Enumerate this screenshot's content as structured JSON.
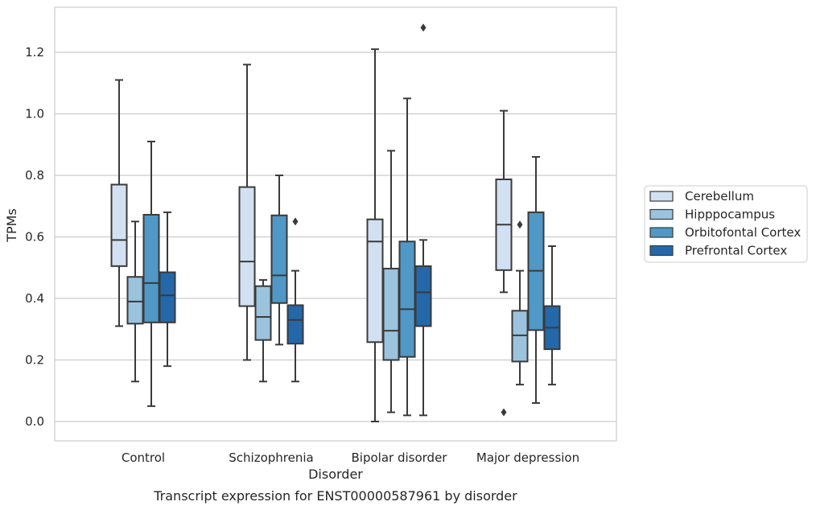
{
  "chart_data": {
    "type": "boxplot",
    "xlabel": "Disorder",
    "ylabel": "TPMs",
    "caption": "Transcript expression for ENST00000587961 by disorder",
    "categories": [
      "Control",
      "Schizophrenia",
      "Bipolar disorder",
      "Major depression"
    ],
    "yticks": [
      "0.0",
      "0.2",
      "0.4",
      "0.6",
      "0.8",
      "1.0",
      "1.2"
    ],
    "ylim": [
      -0.06,
      1.35
    ],
    "grid": "horizontal",
    "legend_position": "right",
    "series": [
      {
        "name": "Cerebellum",
        "color": "#d2e1f1",
        "boxes": [
          {
            "whislo": 0.31,
            "q1": 0.505,
            "med": 0.59,
            "q3": 0.77,
            "whishi": 1.11,
            "fliers": []
          },
          {
            "whislo": 0.2,
            "q1": 0.375,
            "med": 0.52,
            "q3": 0.762,
            "whishi": 1.16,
            "fliers": []
          },
          {
            "whislo": 0.0,
            "q1": 0.258,
            "med": 0.585,
            "q3": 0.657,
            "whishi": 1.21,
            "fliers": []
          },
          {
            "whislo": 0.42,
            "q1": 0.492,
            "med": 0.64,
            "q3": 0.787,
            "whishi": 1.01,
            "fliers": [
              0.03
            ]
          }
        ]
      },
      {
        "name": "Hipppocampus",
        "color": "#9bc3de",
        "boxes": [
          {
            "whislo": 0.13,
            "q1": 0.318,
            "med": 0.39,
            "q3": 0.47,
            "whishi": 0.65,
            "fliers": []
          },
          {
            "whislo": 0.13,
            "q1": 0.265,
            "med": 0.34,
            "q3": 0.44,
            "whishi": 0.46,
            "fliers": []
          },
          {
            "whislo": 0.03,
            "q1": 0.2,
            "med": 0.295,
            "q3": 0.497,
            "whishi": 0.88,
            "fliers": []
          },
          {
            "whislo": 0.12,
            "q1": 0.195,
            "med": 0.28,
            "q3": 0.36,
            "whishi": 0.49,
            "fliers": [
              0.64
            ]
          }
        ]
      },
      {
        "name": "Orbitofontal Cortex",
        "color": "#5098c6",
        "boxes": [
          {
            "whislo": 0.05,
            "q1": 0.322,
            "med": 0.45,
            "q3": 0.672,
            "whishi": 0.91,
            "fliers": []
          },
          {
            "whislo": 0.25,
            "q1": 0.385,
            "med": 0.475,
            "q3": 0.67,
            "whishi": 0.8,
            "fliers": []
          },
          {
            "whislo": 0.02,
            "q1": 0.21,
            "med": 0.365,
            "q3": 0.585,
            "whishi": 1.05,
            "fliers": []
          },
          {
            "whislo": 0.06,
            "q1": 0.297,
            "med": 0.49,
            "q3": 0.68,
            "whishi": 0.86,
            "fliers": []
          }
        ]
      },
      {
        "name": "Prefrontal Cortex",
        "color": "#2468aa",
        "boxes": [
          {
            "whislo": 0.18,
            "q1": 0.322,
            "med": 0.41,
            "q3": 0.485,
            "whishi": 0.68,
            "fliers": []
          },
          {
            "whislo": 0.13,
            "q1": 0.253,
            "med": 0.33,
            "q3": 0.378,
            "whishi": 0.49,
            "fliers": [
              0.65
            ]
          },
          {
            "whislo": 0.02,
            "q1": 0.31,
            "med": 0.42,
            "q3": 0.505,
            "whishi": 0.59,
            "fliers": [
              1.28
            ]
          },
          {
            "whislo": 0.12,
            "q1": 0.235,
            "med": 0.305,
            "q3": 0.375,
            "whishi": 0.57,
            "fliers": []
          }
        ]
      }
    ]
  }
}
